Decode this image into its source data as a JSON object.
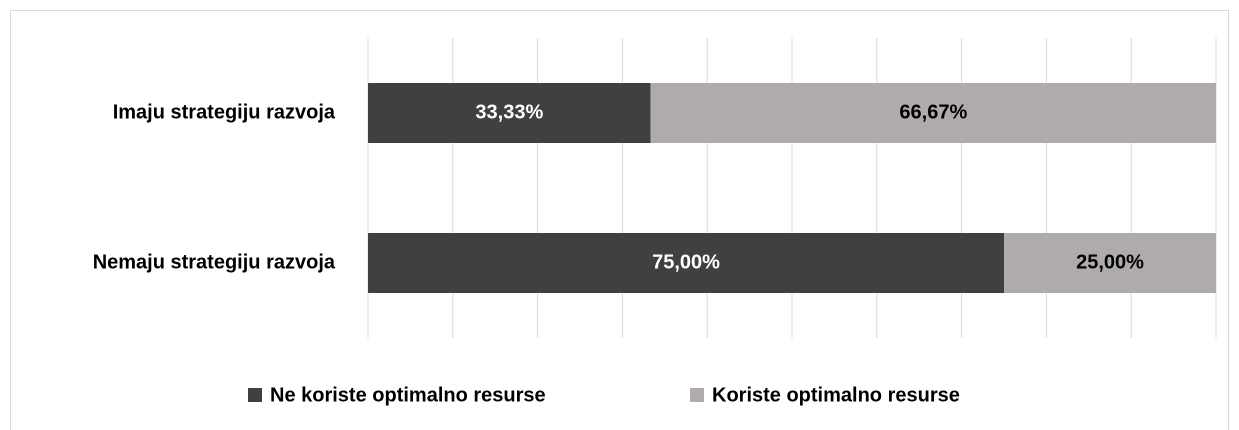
{
  "chart_data": {
    "type": "stacked_barh",
    "categories": [
      "Imaju strategiju razvoja",
      "Nemaju strategiju razvoja"
    ],
    "series": [
      {
        "name": "Ne koriste optimalno resurse",
        "color": "#404040",
        "values": [
          33.33,
          75.0
        ],
        "value_labels": [
          "33,33%",
          "75,00%"
        ]
      },
      {
        "name": "Koriste optimalno resurse",
        "color": "#afabab",
        "values": [
          66.67,
          25.0
        ],
        "value_labels": [
          "66,67%",
          "25,00%"
        ]
      }
    ],
    "xlim": [
      0,
      100
    ],
    "xticks": [
      0,
      10,
      20,
      30,
      40,
      50,
      60,
      70,
      80,
      90,
      100
    ],
    "grid": true,
    "legend": "bottom"
  }
}
